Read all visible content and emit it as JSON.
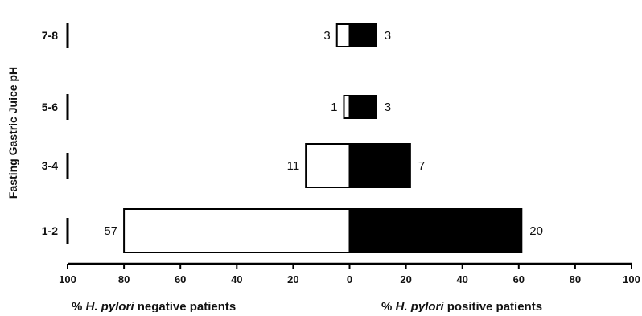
{
  "chart_data": {
    "type": "bar",
    "orientation": "horizontal",
    "layout": "diverging",
    "ylabel": "Fasting Gastric Juice pH",
    "xlabel_left": {
      "prefix": "% ",
      "italic": "H. pylori",
      "suffix": " negative patients"
    },
    "xlabel_right": {
      "prefix": "% ",
      "italic": "H. pylori",
      "suffix": " positive patients"
    },
    "categories": [
      "7-8",
      "5-6",
      "3-4",
      "1-2"
    ],
    "xlim": [
      -100,
      100
    ],
    "x_ticks": [
      -100,
      -80,
      -60,
      -40,
      -20,
      0,
      20,
      40,
      60,
      80,
      100
    ],
    "x_tick_labels": [
      "100",
      "80",
      "60",
      "40",
      "20",
      "0",
      "20",
      "40",
      "60",
      "80",
      "100"
    ],
    "series": [
      {
        "key": "negative",
        "side": "left",
        "fill": "#ffffff",
        "percent": [
          4.5,
          2,
          15.5,
          80
        ],
        "labels": [
          "3",
          "1",
          "11",
          "57"
        ]
      },
      {
        "key": "positive",
        "side": "right",
        "fill": "#000000",
        "percent": [
          9.5,
          9.5,
          21.5,
          61
        ],
        "labels": [
          "3",
          "3",
          "7",
          "20"
        ]
      }
    ],
    "grid": false,
    "legend": "none"
  }
}
